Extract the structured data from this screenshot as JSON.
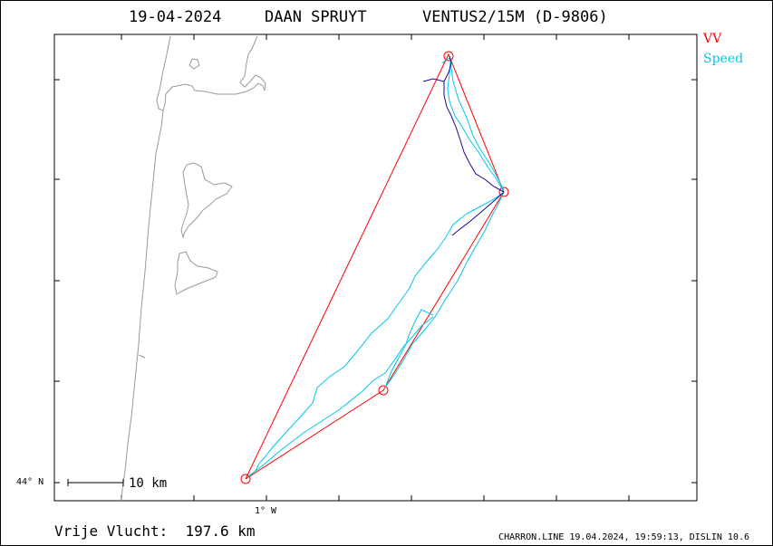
{
  "header": {
    "date": "19-04-2024",
    "pilot": "DAAN SPRUYT",
    "glider": "VENTUS2/15M (D-9806)"
  },
  "legend": {
    "items": [
      {
        "label": "VV",
        "color": "#ff0000"
      },
      {
        "label": "Speed",
        "color": "#00c8e8"
      }
    ]
  },
  "axes": {
    "lat_label": "44° N",
    "lon_label": "1° W"
  },
  "scale_bar": {
    "label": "10 km"
  },
  "distance": {
    "label": "Vrije Vlucht:",
    "value": "197.6 km"
  },
  "footer": {
    "text": "CHARRON.LINE 19.04.2024, 19:59:13, DISLIN 10.6"
  },
  "colors": {
    "task": "#ff0000",
    "track_fast": "#00c8e8",
    "track_slow": "#1a0a8c",
    "coast": "#999999",
    "frame": "#000000"
  }
}
